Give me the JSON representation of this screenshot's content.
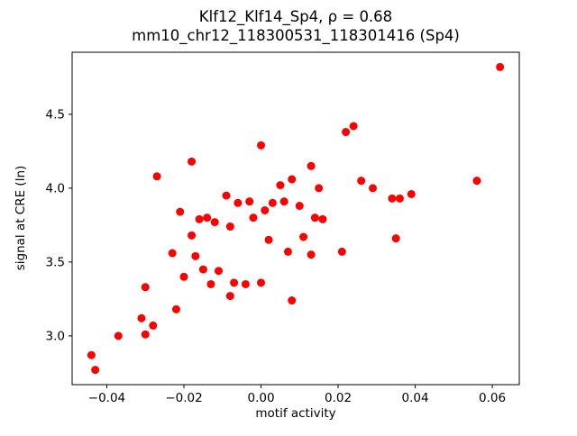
{
  "chart_data": {
    "type": "scatter",
    "title_line1": "Klf12_Klf14_Sp4, ρ = 0.68",
    "title_line2": "mm10_chr12_118300531_118301416 (Sp4)",
    "xlabel": "motif activity",
    "ylabel": "signal at CRE (ln)",
    "xlim": [
      -0.049,
      0.067
    ],
    "ylim": [
      2.67,
      4.92
    ],
    "xticks": [
      -0.04,
      -0.02,
      0.0,
      0.02,
      0.04,
      0.06
    ],
    "yticks": [
      3.0,
      3.5,
      4.0,
      4.5
    ],
    "grid": false,
    "legend": "none",
    "marker_color": "#ff0000",
    "points": [
      [
        -0.044,
        2.87
      ],
      [
        -0.043,
        2.77
      ],
      [
        -0.037,
        3.0
      ],
      [
        -0.031,
        3.12
      ],
      [
        -0.03,
        3.01
      ],
      [
        -0.03,
        3.33
      ],
      [
        -0.028,
        3.07
      ],
      [
        -0.027,
        4.08
      ],
      [
        -0.023,
        3.56
      ],
      [
        -0.022,
        3.18
      ],
      [
        -0.021,
        3.84
      ],
      [
        -0.02,
        3.4
      ],
      [
        -0.018,
        4.18
      ],
      [
        -0.018,
        3.68
      ],
      [
        -0.017,
        3.54
      ],
      [
        -0.016,
        3.79
      ],
      [
        -0.015,
        3.45
      ],
      [
        -0.014,
        3.8
      ],
      [
        -0.013,
        3.35
      ],
      [
        -0.012,
        3.77
      ],
      [
        -0.011,
        3.44
      ],
      [
        -0.009,
        3.95
      ],
      [
        -0.008,
        3.74
      ],
      [
        -0.008,
        3.27
      ],
      [
        -0.007,
        3.36
      ],
      [
        -0.006,
        3.9
      ],
      [
        -0.004,
        3.35
      ],
      [
        -0.003,
        3.91
      ],
      [
        -0.002,
        3.8
      ],
      [
        0.0,
        4.29
      ],
      [
        0.0,
        3.36
      ],
      [
        0.001,
        3.85
      ],
      [
        0.002,
        3.65
      ],
      [
        0.003,
        3.9
      ],
      [
        0.005,
        4.02
      ],
      [
        0.006,
        3.91
      ],
      [
        0.007,
        3.57
      ],
      [
        0.008,
        4.06
      ],
      [
        0.008,
        3.24
      ],
      [
        0.01,
        3.88
      ],
      [
        0.011,
        3.67
      ],
      [
        0.013,
        4.15
      ],
      [
        0.013,
        3.55
      ],
      [
        0.014,
        3.8
      ],
      [
        0.015,
        4.0
      ],
      [
        0.016,
        3.79
      ],
      [
        0.021,
        3.57
      ],
      [
        0.022,
        4.38
      ],
      [
        0.024,
        4.42
      ],
      [
        0.026,
        4.05
      ],
      [
        0.029,
        4.0
      ],
      [
        0.034,
        3.93
      ],
      [
        0.035,
        3.66
      ],
      [
        0.036,
        3.93
      ],
      [
        0.039,
        3.96
      ],
      [
        0.056,
        4.05
      ],
      [
        0.062,
        4.82
      ]
    ]
  }
}
